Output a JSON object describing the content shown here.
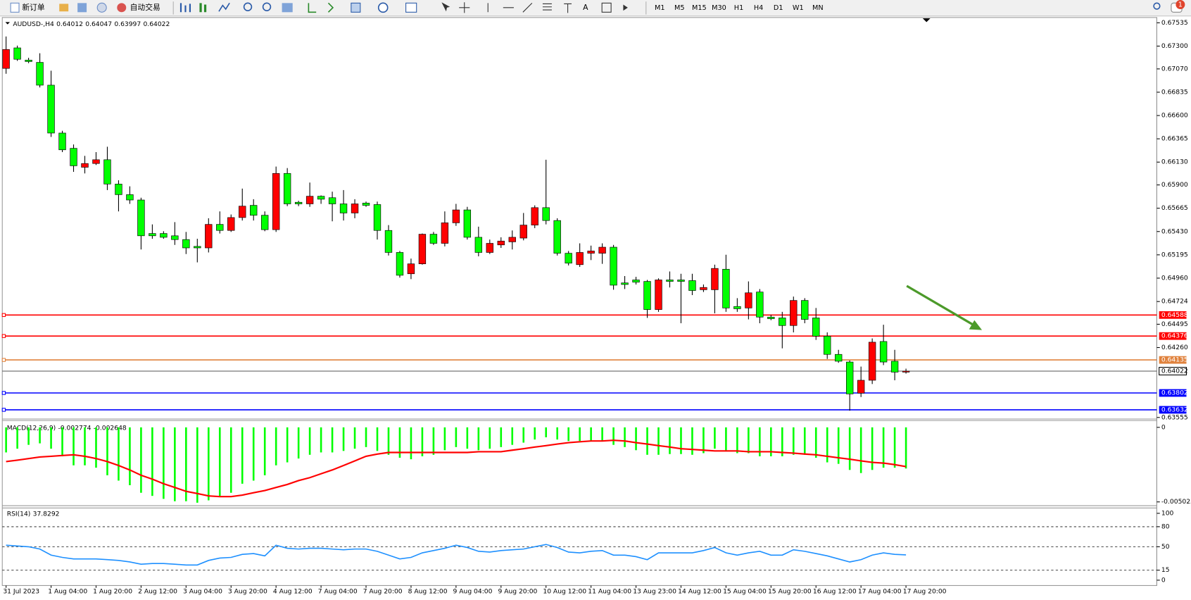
{
  "toolbar": {
    "new_order": "新订单",
    "auto_trading": "自动交易",
    "timeframes": [
      "M1",
      "M5",
      "M15",
      "M30",
      "H1",
      "H4",
      "D1",
      "W1",
      "MN"
    ],
    "notifications": "1"
  },
  "chart_data": [
    {
      "type": "candlestick",
      "title": "AUDUSD-,H4",
      "up_color": "#ff0000",
      "down_color": "#00ff00",
      "categories": [
        "31 Jul 2023",
        null,
        null,
        null,
        "1 Aug 04:00",
        null,
        null,
        null,
        "1 Aug 20:00",
        null,
        null,
        null,
        "2 Aug 12:00",
        null,
        null,
        null,
        "3 Aug 04:00",
        null,
        null,
        null,
        "3 Aug 20:00",
        null,
        null,
        null,
        "4 Aug 12:00",
        null,
        null,
        null,
        "7 Aug 04:00",
        null,
        null,
        null,
        "7 Aug 20:00",
        null,
        null,
        null,
        "8 Aug 12:00",
        null,
        null,
        null,
        "9 Aug 04:00",
        null,
        null,
        null,
        "9 Aug 20:00",
        null,
        null,
        null,
        "10 Aug 12:00",
        null,
        null,
        null,
        "11 Aug 04:00",
        null,
        null,
        null,
        "13 Aug 23:00",
        null,
        null,
        null,
        "14 Aug 12:00",
        null,
        null,
        null,
        "15 Aug 04:00",
        null,
        null,
        null,
        "15 Aug 20:00",
        null,
        null,
        null,
        "16 Aug 12:00",
        null,
        null,
        null,
        "17 Aug 04:00",
        null,
        null,
        null,
        "17 Aug 20:00"
      ],
      "open": [
        0.67075,
        0.67282,
        0.67159,
        0.67136,
        0.66906,
        0.66423,
        0.66269,
        0.66078,
        0.66116,
        0.66154,
        0.65909,
        0.65802,
        0.65748,
        0.6541,
        0.6541,
        0.65387,
        0.65349,
        0.6528,
        0.65265,
        0.65502,
        0.65441,
        0.65571,
        0.65694,
        0.65594,
        0.65449,
        0.66016,
        0.65725,
        0.65709,
        0.65786,
        0.65771,
        0.65709,
        0.65617,
        0.65717,
        0.65702,
        0.65441,
        0.65219,
        0.65004,
        0.65104,
        0.65403,
        0.65311,
        0.65518,
        0.65648,
        0.65372,
        0.65219,
        0.65295,
        0.65326,
        0.65364,
        0.65495,
        0.65671,
        0.65541,
        0.65211,
        0.65096,
        0.65211,
        0.65211,
        0.65272,
        0.64912,
        0.64942,
        0.64927,
        0.64643,
        0.64942,
        0.64942,
        0.64935,
        0.64843,
        0.64843,
        0.6505,
        0.64674,
        0.64659,
        0.6482,
        0.64567,
        0.64559,
        0.64482,
        0.64735,
        0.64559,
        0.64375,
        0.64191,
        0.64114,
        0.638,
        0.6393,
        0.64321,
        0.64122,
        0.64012
      ],
      "high": [
        0.67397,
        0.67305,
        0.67182,
        0.67228,
        0.67052,
        0.66446,
        0.66308,
        0.66193,
        0.66231,
        0.66285,
        0.65947,
        0.65886,
        0.65771,
        0.65502,
        0.65433,
        0.65525,
        0.65426,
        0.65357,
        0.65564,
        0.65633,
        0.65602,
        0.65863,
        0.65756,
        0.65633,
        0.66085,
        0.6607,
        0.6574,
        0.65924,
        0.65794,
        0.65832,
        0.65848,
        0.65756,
        0.65732,
        0.65732,
        0.65495,
        0.65234,
        0.65157,
        0.6541,
        0.65426,
        0.65633,
        0.65709,
        0.65679,
        0.65479,
        0.65349,
        0.65372,
        0.65441,
        0.65617,
        0.65694,
        0.66154,
        0.65564,
        0.65234,
        0.65311,
        0.65288,
        0.65311,
        0.65295,
        0.64981,
        0.64973,
        0.64942,
        0.64958,
        0.65027,
        0.65004,
        0.65004,
        0.64896,
        0.65096,
        0.65196,
        0.64758,
        0.64927,
        0.6485,
        0.6459,
        0.6462,
        0.64774,
        0.64758,
        0.64659,
        0.64413,
        0.64237,
        0.64129,
        0.64068,
        0.64352,
        0.6449,
        0.64237,
        0.64047
      ],
      "low": [
        0.67021,
        0.67151,
        0.67128,
        0.66883,
        0.66384,
        0.66231,
        0.66032,
        0.66016,
        0.66101,
        0.65848,
        0.65633,
        0.65709,
        0.65249,
        0.65357,
        0.65357,
        0.65295,
        0.65203,
        0.65119,
        0.65219,
        0.6541,
        0.65426,
        0.65541,
        0.65541,
        0.65433,
        0.65426,
        0.65686,
        0.65686,
        0.65679,
        0.65709,
        0.65533,
        0.65541,
        0.65564,
        0.65679,
        0.65349,
        0.65188,
        0.64965,
        0.6495,
        0.65096,
        0.65295,
        0.6528,
        0.65487,
        0.65349,
        0.6518,
        0.65203,
        0.65265,
        0.65249,
        0.65341,
        0.65464,
        0.65502,
        0.65188,
        0.65088,
        0.65073,
        0.65142,
        0.65104,
        0.64843,
        0.6485,
        0.64896,
        0.64559,
        0.6462,
        0.64866,
        0.64505,
        0.64789,
        0.6482,
        0.64605,
        0.6462,
        0.6462,
        0.64544,
        0.64505,
        0.64536,
        0.64252,
        0.64413,
        0.64505,
        0.64337,
        0.64145,
        0.64106,
        0.63623,
        0.63761,
        0.63892,
        0.64083,
        0.6393,
        0.63997
      ],
      "close": [
        0.67266,
        0.67167,
        0.67144,
        0.66906,
        0.66423,
        0.66254,
        0.66093,
        0.66116,
        0.66154,
        0.65909,
        0.65802,
        0.65748,
        0.65387,
        0.65387,
        0.65372,
        0.65349,
        0.65265,
        0.65265,
        0.65502,
        0.65441,
        0.65571,
        0.65686,
        0.65594,
        0.65449,
        0.66016,
        0.65709,
        0.65709,
        0.65786,
        0.65756,
        0.65709,
        0.65617,
        0.65709,
        0.65694,
        0.65441,
        0.65219,
        0.64989,
        0.65104,
        0.65403,
        0.65311,
        0.65518,
        0.65648,
        0.65372,
        0.65219,
        0.65311,
        0.65334,
        0.65372,
        0.65495,
        0.65671,
        0.65541,
        0.65211,
        0.65111,
        0.65219,
        0.65234,
        0.65272,
        0.64889,
        0.64896,
        0.64919,
        0.64643,
        0.64942,
        0.64927,
        0.64927,
        0.64835,
        0.64866,
        0.65058,
        0.64659,
        0.64651,
        0.64812,
        0.64567,
        0.64551,
        0.64482,
        0.64735,
        0.64544,
        0.64375,
        0.64191,
        0.64122,
        0.63792,
        0.6393,
        0.64314,
        0.64114,
        0.64012,
        0.64022
      ],
      "ylim": [
        0.63547,
        0.67573
      ],
      "yticks": [
        0.67535,
        {
          "value": 0.673,
          "label": "0.67300"
        },
        {
          "value": 0.6707,
          "label": "0.67070"
        },
        0.66835,
        {
          "value": 0.666,
          "label": "0.66600"
        },
        0.66365,
        {
          "value": 0.6613,
          "label": "0.66130"
        },
        {
          "value": 0.659,
          "label": "0.65900"
        },
        0.65665,
        {
          "value": 0.6543,
          "label": "0.65430"
        },
        0.65195,
        {
          "value": 0.6496,
          "label": "0.64960"
        },
        0.64724,
        0.64495,
        {
          "value": 0.6426,
          "label": "0.64260"
        },
        0.63555
      ],
      "hlines": [
        {
          "value": 0.64588,
          "color": "#ff0000"
        },
        {
          "value": 0.64376,
          "color": "#ff0000"
        },
        {
          "value": 0.64135,
          "color": "#e0823d"
        },
        {
          "value": 0.63802,
          "color": "#0000ff"
        },
        {
          "value": 0.63632,
          "color": "#0000ff"
        }
      ],
      "grid": false
    },
    {
      "type": "macd",
      "title": "MACD(12,26,9)",
      "color": "#00ff00",
      "signal_color": "#ff0000",
      "values": [
        -0.00169,
        -0.00144,
        -0.00118,
        -0.00108,
        -0.00144,
        -0.00195,
        -0.00256,
        -0.00256,
        -0.00272,
        -0.00323,
        -0.00359,
        -0.0039,
        -0.00441,
        -0.00462,
        -0.00482,
        -0.00498,
        -0.00498,
        -0.00508,
        -0.00492,
        -0.00462,
        -0.00441,
        -0.0038,
        -0.00359,
        -0.00323,
        -0.00256,
        -0.00236,
        -0.0021,
        -0.00185,
        -0.00169,
        -0.00169,
        -0.00159,
        -0.00144,
        -0.00133,
        -0.00159,
        -0.00185,
        -0.00205,
        -0.00215,
        -0.00195,
        -0.00185,
        -0.00154,
        -0.00133,
        -0.00144,
        -0.00154,
        -0.00144,
        -0.00133,
        -0.00118,
        -0.00103,
        -0.00082,
        -0.00067,
        -0.00082,
        -0.00092,
        -0.00092,
        -0.00092,
        -0.00092,
        -0.00118,
        -0.00133,
        -0.00154,
        -0.00185,
        -0.00185,
        -0.0018,
        -0.0018,
        -0.00185,
        -0.00174,
        -0.00144,
        -0.00159,
        -0.00174,
        -0.00174,
        -0.00195,
        -0.00195,
        -0.00195,
        -0.00185,
        -0.00185,
        -0.00205,
        -0.00236,
        -0.00246,
        -0.00287,
        -0.00308,
        -0.00287,
        -0.00272,
        -0.00272,
        -0.002774
      ],
      "signal": [
        -0.00231,
        -0.00221,
        -0.0021,
        -0.002,
        -0.00195,
        -0.0019,
        -0.00185,
        -0.00195,
        -0.0021,
        -0.00231,
        -0.00257,
        -0.00287,
        -0.00323,
        -0.00349,
        -0.0038,
        -0.00405,
        -0.00431,
        -0.00446,
        -0.00462,
        -0.00467,
        -0.00467,
        -0.00457,
        -0.00441,
        -0.00426,
        -0.00405,
        -0.00385,
        -0.00359,
        -0.00339,
        -0.00313,
        -0.00287,
        -0.00257,
        -0.00226,
        -0.00195,
        -0.0018,
        -0.00169,
        -0.00169,
        -0.00169,
        -0.00169,
        -0.00169,
        -0.00169,
        -0.00169,
        -0.00169,
        -0.00164,
        -0.00164,
        -0.00164,
        -0.00154,
        -0.00144,
        -0.00133,
        -0.00123,
        -0.00113,
        -0.00103,
        -0.00097,
        -0.00092,
        -0.00092,
        -0.00087,
        -0.00092,
        -0.00103,
        -0.00113,
        -0.00123,
        -0.00133,
        -0.00144,
        -0.00149,
        -0.00154,
        -0.00159,
        -0.00159,
        -0.00159,
        -0.00164,
        -0.00164,
        -0.00164,
        -0.00169,
        -0.00174,
        -0.0018,
        -0.00185,
        -0.00195,
        -0.00205,
        -0.00215,
        -0.00226,
        -0.00236,
        -0.00241,
        -0.00251,
        -0.002648
      ],
      "ylim": [
        -0.00528,
        0.00046
      ],
      "yticks": [
        0,
        -0.005025
      ]
    },
    {
      "type": "line",
      "title": "RSI(14)",
      "color": "#1e90ff",
      "values": [
        52.3,
        51.1,
        50,
        46.6,
        37.5,
        34.1,
        31.8,
        31.8,
        31.8,
        30.7,
        29.5,
        27.3,
        23.9,
        25,
        25,
        23.9,
        22.7,
        22.7,
        29.5,
        33,
        34.1,
        38.6,
        39.8,
        36.4,
        52.3,
        47.7,
        46.6,
        47.7,
        47.7,
        46.6,
        45.5,
        46.6,
        46.6,
        43.2,
        37.5,
        31.8,
        34.1,
        40.9,
        44.3,
        47.7,
        52.3,
        48.9,
        43.2,
        42,
        44.3,
        45.5,
        46.6,
        50,
        53.4,
        48.9,
        42,
        40.9,
        43.2,
        44.3,
        37.5,
        37.5,
        35.2,
        30.7,
        40.9,
        40.9,
        40.9,
        40.9,
        44.3,
        48.9,
        40.9,
        37.5,
        40.9,
        43.2,
        37.5,
        37.5,
        45.5,
        43.2,
        39.8,
        36.4,
        31.8,
        27.3,
        30.7,
        37.5,
        40.9,
        38.6,
        37.8292
      ],
      "ylim": [
        -8,
        108
      ],
      "yticks": [
        100,
        80,
        50,
        15,
        0
      ],
      "levels": [
        80,
        50,
        15
      ]
    }
  ]
}
